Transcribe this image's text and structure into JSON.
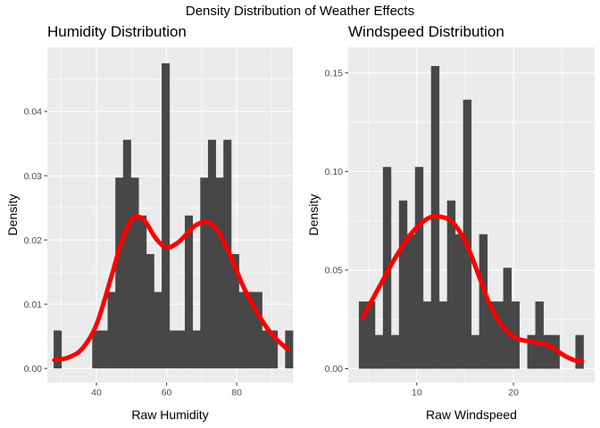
{
  "figure": {
    "title": "Density Distribution of Weather Effects"
  },
  "chart_data": [
    {
      "type": "bar",
      "title": "Humidity Distribution",
      "xlabel": "Raw Humidity",
      "ylabel": "Density",
      "xlim": [
        26,
        96
      ],
      "ylim": [
        -0.0022,
        0.05
      ],
      "x_ticks": [
        40,
        60,
        80
      ],
      "y_ticks": [
        0.0,
        0.01,
        0.02,
        0.03,
        0.04
      ],
      "y_tick_labels": [
        "0.00",
        "0.01",
        "0.02",
        "0.03",
        "0.04"
      ],
      "grid": true,
      "bin_width": 2.2,
      "bins": [
        {
          "x0": 27.8,
          "value": 0.0059
        },
        {
          "x0": 38.8,
          "value": 0.0059
        },
        {
          "x0": 41.0,
          "value": 0.0059
        },
        {
          "x0": 43.2,
          "value": 0.0119
        },
        {
          "x0": 45.4,
          "value": 0.0297
        },
        {
          "x0": 47.6,
          "value": 0.0356
        },
        {
          "x0": 49.8,
          "value": 0.0297
        },
        {
          "x0": 52.0,
          "value": 0.0238
        },
        {
          "x0": 54.2,
          "value": 0.0178
        },
        {
          "x0": 56.4,
          "value": 0.0119
        },
        {
          "x0": 58.6,
          "value": 0.0475
        },
        {
          "x0": 60.8,
          "value": 0.0059
        },
        {
          "x0": 63.0,
          "value": 0.0059
        },
        {
          "x0": 65.2,
          "value": 0.0238
        },
        {
          "x0": 67.4,
          "value": 0.0059
        },
        {
          "x0": 69.6,
          "value": 0.0297
        },
        {
          "x0": 71.8,
          "value": 0.0356
        },
        {
          "x0": 74.0,
          "value": 0.0297
        },
        {
          "x0": 76.2,
          "value": 0.0356
        },
        {
          "x0": 78.4,
          "value": 0.0178
        },
        {
          "x0": 80.6,
          "value": 0.0119
        },
        {
          "x0": 82.8,
          "value": 0.0119
        },
        {
          "x0": 85.0,
          "value": 0.0119
        },
        {
          "x0": 87.2,
          "value": 0.0059
        },
        {
          "x0": 89.4,
          "value": 0.0059
        },
        {
          "x0": 93.8,
          "value": 0.0059
        }
      ],
      "density_curve": {
        "color": "#ff0000",
        "x": [
          28.0,
          32,
          36,
          40,
          44,
          47,
          50,
          52,
          54,
          57,
          60,
          63,
          65,
          67,
          69,
          71,
          72,
          74,
          76,
          79,
          82,
          86,
          90,
          94.4
        ],
        "y": [
          0.0013,
          0.0017,
          0.0031,
          0.0068,
          0.0138,
          0.0194,
          0.0231,
          0.0236,
          0.0228,
          0.0202,
          0.0188,
          0.0195,
          0.0205,
          0.0217,
          0.0225,
          0.0228,
          0.0227,
          0.0218,
          0.02,
          0.0165,
          0.0126,
          0.0085,
          0.0053,
          0.003
        ]
      }
    },
    {
      "type": "bar",
      "title": "Windspeed Distribution",
      "xlabel": "Raw Windspeed",
      "ylabel": "Density",
      "xlim": [
        2.9,
        28.4
      ],
      "ylim": [
        -0.007,
        0.163
      ],
      "x_ticks": [
        10,
        20
      ],
      "y_ticks": [
        0.0,
        0.05,
        0.1,
        0.15
      ],
      "y_tick_labels": [
        "0.00",
        "0.05",
        "0.10",
        "0.15"
      ],
      "grid": true,
      "bin_width": 0.83,
      "bins": [
        {
          "x0": 4.0,
          "value": 0.0341
        },
        {
          "x0": 4.83,
          "value": 0.0341
        },
        {
          "x0": 5.66,
          "value": 0.0171
        },
        {
          "x0": 6.49,
          "value": 0.1023
        },
        {
          "x0": 7.32,
          "value": 0.0171
        },
        {
          "x0": 8.15,
          "value": 0.0853
        },
        {
          "x0": 8.98,
          "value": 0.0682
        },
        {
          "x0": 9.81,
          "value": 0.1023
        },
        {
          "x0": 10.64,
          "value": 0.0341
        },
        {
          "x0": 11.47,
          "value": 0.1535
        },
        {
          "x0": 12.3,
          "value": 0.0341
        },
        {
          "x0": 13.13,
          "value": 0.0853
        },
        {
          "x0": 13.96,
          "value": 0.0682
        },
        {
          "x0": 14.79,
          "value": 0.1364
        },
        {
          "x0": 15.62,
          "value": 0.0171
        },
        {
          "x0": 16.45,
          "value": 0.0682
        },
        {
          "x0": 17.28,
          "value": 0.0341
        },
        {
          "x0": 18.11,
          "value": 0.0341
        },
        {
          "x0": 18.94,
          "value": 0.0512
        },
        {
          "x0": 19.77,
          "value": 0.0341
        },
        {
          "x0": 21.43,
          "value": 0.0171
        },
        {
          "x0": 22.26,
          "value": 0.0341
        },
        {
          "x0": 23.09,
          "value": 0.0171
        },
        {
          "x0": 23.92,
          "value": 0.0171
        },
        {
          "x0": 26.41,
          "value": 0.0171
        }
      ],
      "density_curve": {
        "color": "#ff0000",
        "x": [
          4.4,
          5.5,
          6.5,
          7.5,
          8.5,
          9.5,
          10.5,
          11.5,
          12.5,
          13.5,
          14.5,
          15.5,
          16.5,
          17.5,
          18.5,
          19.5,
          20.5,
          21.5,
          22.5,
          23.5,
          24.5,
          25.5,
          26.5,
          27.1
        ],
        "y": [
          0.026,
          0.036,
          0.045,
          0.054,
          0.062,
          0.069,
          0.074,
          0.077,
          0.077,
          0.075,
          0.069,
          0.059,
          0.046,
          0.033,
          0.024,
          0.018,
          0.015,
          0.014,
          0.013,
          0.012,
          0.009,
          0.006,
          0.004,
          0.004
        ]
      }
    }
  ]
}
